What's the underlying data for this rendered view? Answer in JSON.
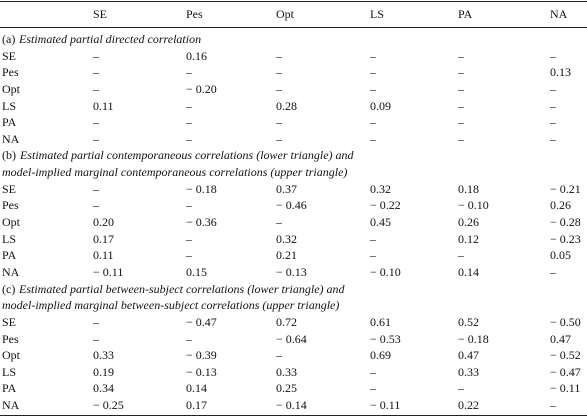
{
  "table": {
    "columns": [
      "SE",
      "Pes",
      "Opt",
      "LS",
      "PA",
      "NA"
    ],
    "sections": [
      {
        "label": "(a)",
        "title_lines": [
          "Estimated partial directed correlation"
        ],
        "rows": [
          {
            "name": "SE",
            "cells": [
              "–",
              "0.16",
              "–",
              "–",
              "–",
              "–"
            ]
          },
          {
            "name": "Pes",
            "cells": [
              "–",
              "–",
              "–",
              "–",
              "–",
              "0.13"
            ]
          },
          {
            "name": "Opt",
            "cells": [
              "–",
              "− 0.20",
              "–",
              "–",
              "–",
              "–"
            ]
          },
          {
            "name": "LS",
            "cells": [
              "0.11",
              "–",
              "0.28",
              "0.09",
              "–",
              "–"
            ]
          },
          {
            "name": "PA",
            "cells": [
              "–",
              "–",
              "–",
              "–",
              "–",
              "–"
            ]
          },
          {
            "name": "NA",
            "cells": [
              "–",
              "–",
              "–",
              "–",
              "–",
              "–"
            ]
          }
        ]
      },
      {
        "label": "(b)",
        "title_lines": [
          "Estimated partial contemporaneous correlations (lower triangle) and",
          "model-implied marginal contemporaneous correlations (upper triangle)"
        ],
        "rows": [
          {
            "name": "SE",
            "cells": [
              "–",
              "− 0.18",
              "0.37",
              "0.32",
              "0.18",
              "− 0.21"
            ]
          },
          {
            "name": "Pes",
            "cells": [
              "–",
              "–",
              "− 0.46",
              "− 0.22",
              "− 0.10",
              "0.26"
            ]
          },
          {
            "name": "Opt",
            "cells": [
              "0.20",
              "− 0.36",
              "–",
              "0.45",
              "0.26",
              "− 0.28"
            ]
          },
          {
            "name": "LS",
            "cells": [
              "0.17",
              "–",
              "0.32",
              "–",
              "0.12",
              "− 0.23"
            ]
          },
          {
            "name": "PA",
            "cells": [
              "0.11",
              "–",
              "0.21",
              "–",
              "–",
              "0.05"
            ]
          },
          {
            "name": "NA",
            "cells": [
              "− 0.11",
              "0.15",
              "− 0.13",
              "− 0.10",
              "0.14",
              "–"
            ]
          }
        ]
      },
      {
        "label": "(c)",
        "title_lines": [
          "Estimated partial between-subject correlations (lower triangle) and",
          "model-implied marginal between-subject correlations (upper triangle)"
        ],
        "rows": [
          {
            "name": "SE",
            "cells": [
              "–",
              "− 0.47",
              "0.72",
              "0.61",
              "0.52",
              "− 0.50"
            ]
          },
          {
            "name": "Pes",
            "cells": [
              "–",
              "–",
              "− 0.64",
              "− 0.53",
              "− 0.18",
              "0.47"
            ]
          },
          {
            "name": "Opt",
            "cells": [
              "0.33",
              "− 0.39",
              "–",
              "0.69",
              "0.47",
              "− 0.52"
            ]
          },
          {
            "name": "LS",
            "cells": [
              "0.19",
              "− 0.13",
              "0.33",
              "–",
              "0.33",
              "− 0.47"
            ]
          },
          {
            "name": "PA",
            "cells": [
              "0.34",
              "0.14",
              "0.25",
              "–",
              "–",
              "− 0.11"
            ]
          },
          {
            "name": "NA",
            "cells": [
              "− 0.25",
              "0.17",
              "− 0.14",
              "− 0.11",
              "0.22",
              "–"
            ]
          }
        ]
      }
    ]
  }
}
